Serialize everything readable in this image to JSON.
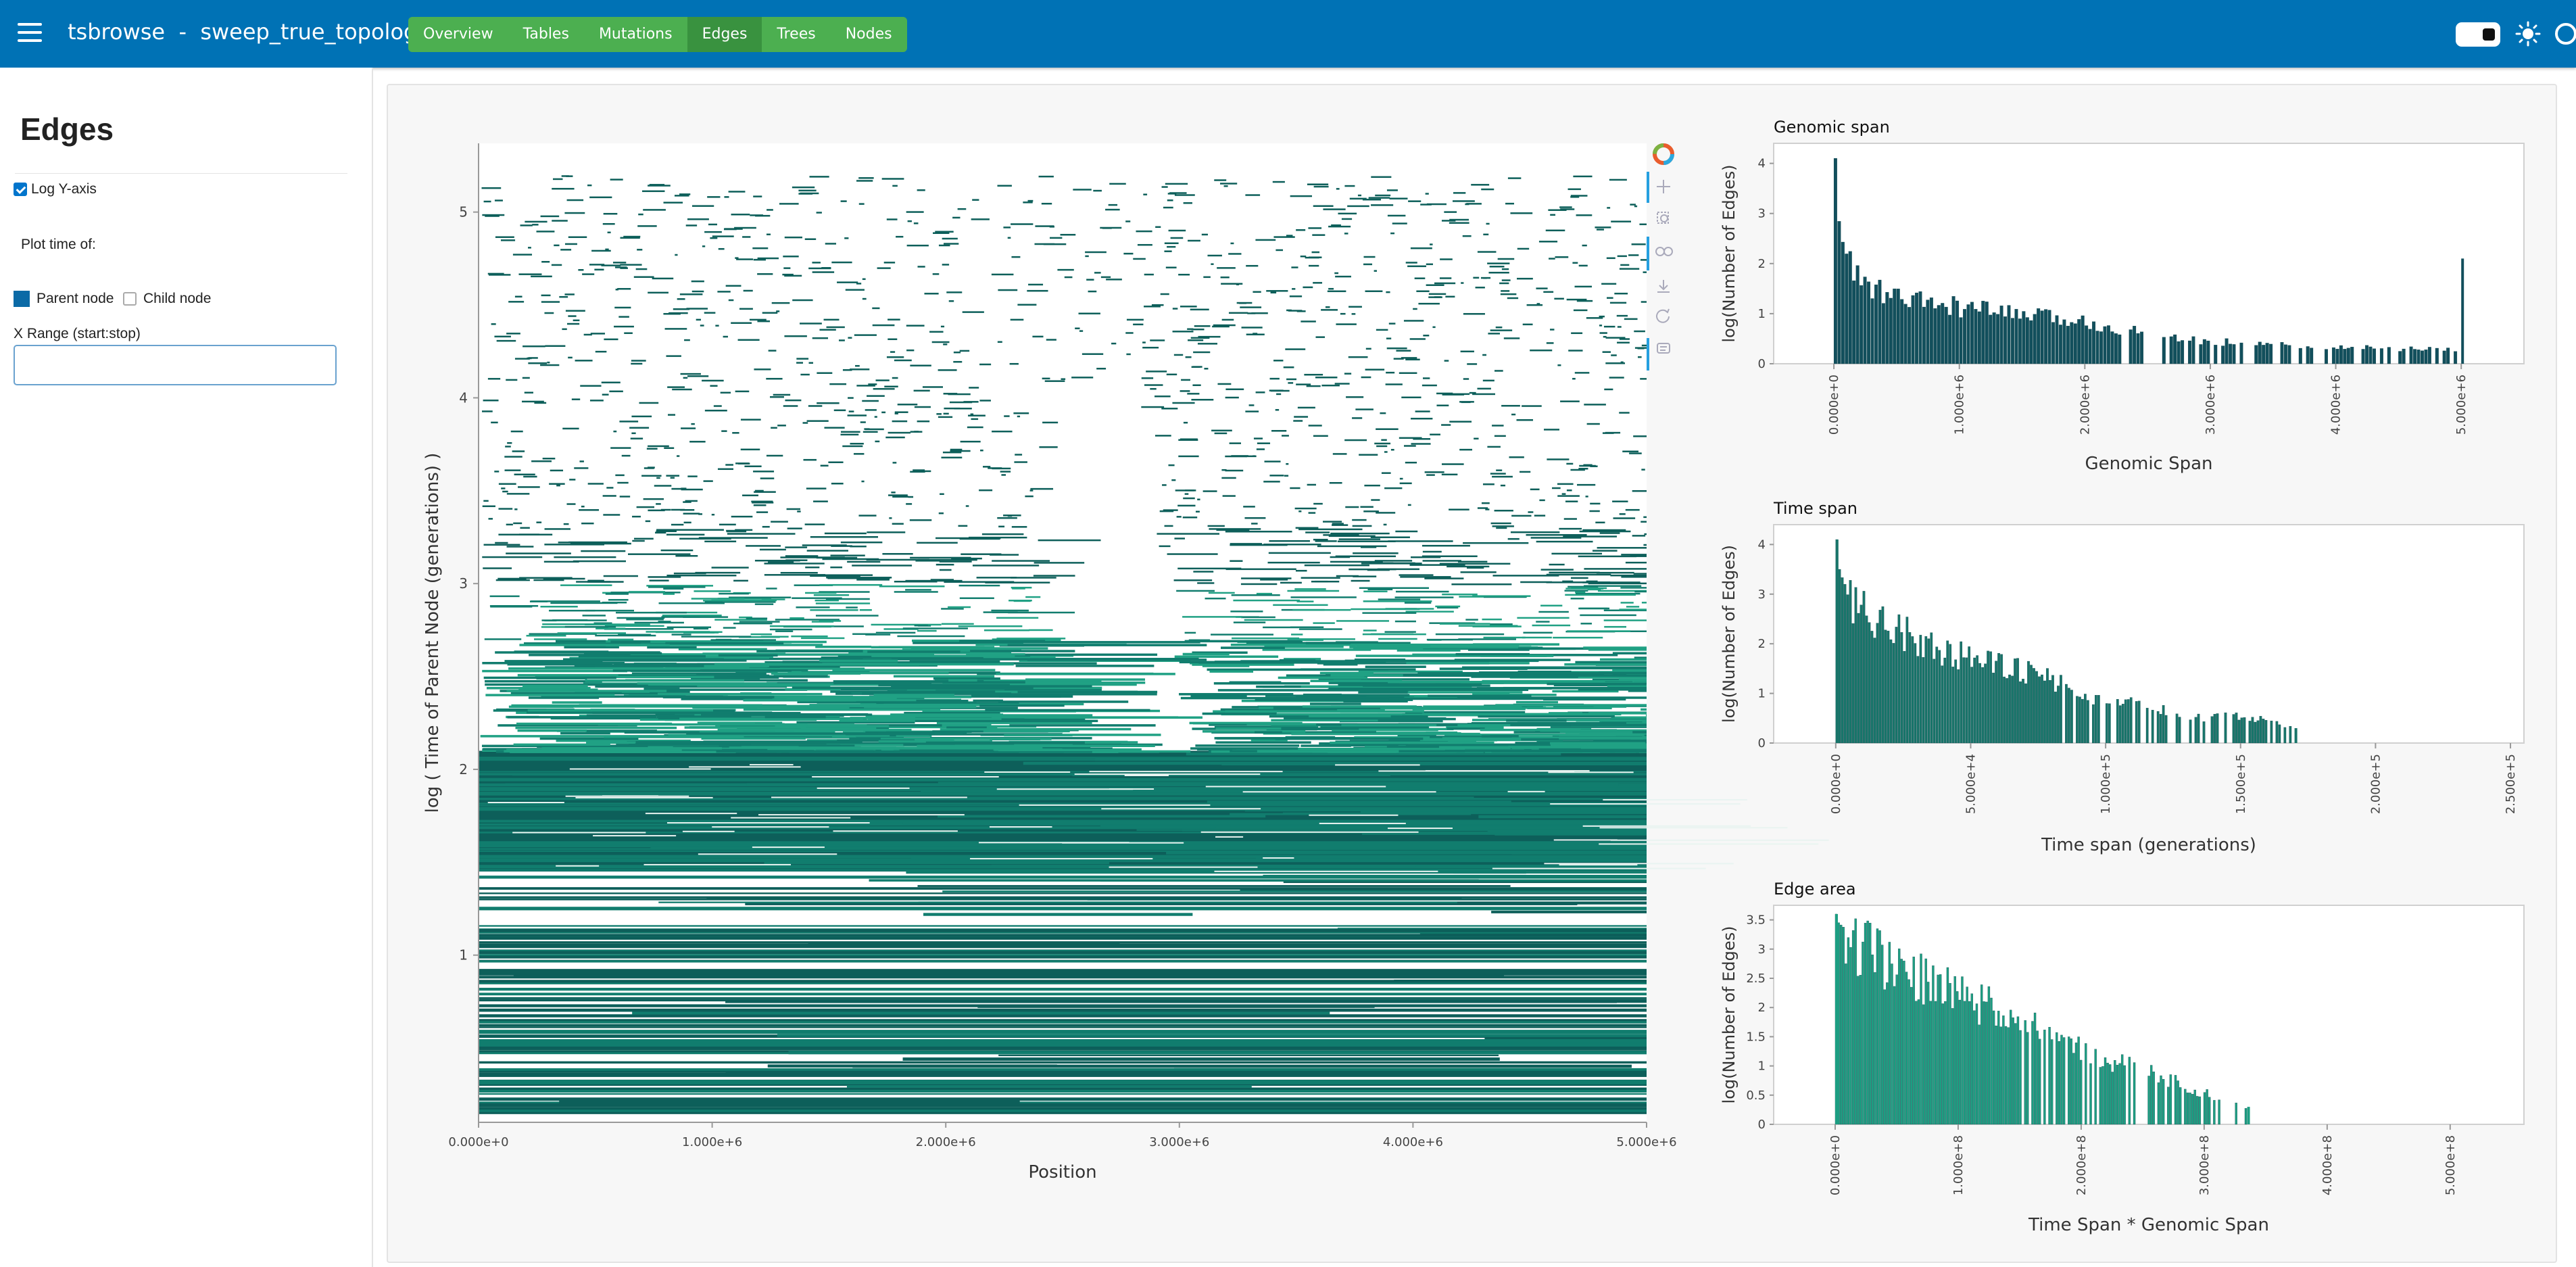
{
  "header": {
    "title": "tsbrowse  -  sweep_true_topology",
    "tabs": [
      {
        "label": "Overview",
        "active": false
      },
      {
        "label": "Tables",
        "active": false
      },
      {
        "label": "Mutations",
        "active": false
      },
      {
        "label": "Edges",
        "active": true
      },
      {
        "label": "Trees",
        "active": false
      },
      {
        "label": "Nodes",
        "active": false
      }
    ],
    "icons": [
      "hamburger-menu-icon",
      "theme-toggle",
      "sun-icon",
      "circle-icon"
    ]
  },
  "sidebar": {
    "title": "Edges",
    "log_y": {
      "label": "Log Y-axis",
      "checked": true
    },
    "plot_time_label": "Plot time of:",
    "parent_node": {
      "label": "Parent node",
      "selected": true
    },
    "child_node": {
      "label": "Child node",
      "selected": false
    },
    "x_range": {
      "label": "X Range (start:stop)",
      "value": "",
      "placeholder": ""
    }
  },
  "toolbar": {
    "icons": [
      "bokeh-logo-icon",
      "pan-icon",
      "box-zoom-icon",
      "wheel-zoom-icon",
      "save-icon",
      "reset-icon",
      "hover-icon"
    ]
  },
  "colors": {
    "header": "#0072b5",
    "nav": "#4caf50",
    "edge_dark": "#0d5f5a",
    "edge_mid": "#117d6e",
    "edge_light": "#20a184",
    "genomic_bar": "#124f5c",
    "time_bar": "#18756a",
    "area_bar": "#1d9e82"
  },
  "chart_data": [
    {
      "type": "scatter",
      "title": "",
      "xlabel": "Position",
      "ylabel": "log ( Time of Parent Node (generations) )",
      "xlim": [
        0,
        5000000
      ],
      "ylim": [
        0.1,
        5.37
      ],
      "x_ticks": [
        "0.000e+0",
        "1.000e+6",
        "2.000e+6",
        "3.000e+6",
        "4.000e+6",
        "5.000e+6"
      ],
      "y_ticks": [
        "1",
        "2",
        "3",
        "4",
        "5"
      ],
      "grid": false,
      "description_of_marks": "horizontal edge segments (left..right) at log parent time",
      "sweep_gap_x": [
        2450000,
        2800000
      ],
      "sweep_gap_y": [
        2.1,
        4.1
      ]
    },
    {
      "type": "bar",
      "title": "Genomic span",
      "xlabel": "Genomic Span",
      "ylabel": "log(Number of Edges)",
      "xlim": [
        -480000,
        5500000
      ],
      "ylim": [
        0,
        4.4
      ],
      "x_ticks": [
        "0.000e+0",
        "1.000e+6",
        "2.000e+6",
        "3.000e+6",
        "4.000e+6",
        "5.000e+6"
      ],
      "y_ticks": [
        "0",
        "1",
        "2",
        "3",
        "4"
      ],
      "x": [
        0,
        20000,
        50000,
        100000,
        200000,
        400000,
        700000,
        1000000,
        1500000,
        2000000,
        2500000,
        3000000,
        3500000,
        4000000,
        4500000,
        4950000,
        5000000
      ],
      "values": [
        4.1,
        3.0,
        2.5,
        2.1,
        1.7,
        1.4,
        1.25,
        1.15,
        1.0,
        0.85,
        0.6,
        0.45,
        0.4,
        0.35,
        0.3,
        0.3,
        2.1
      ]
    },
    {
      "type": "bar",
      "title": "Time span",
      "xlabel": "Time span (generations)",
      "ylabel": "log(Number of Edges)",
      "xlim": [
        -23000,
        255000
      ],
      "ylim": [
        0,
        4.4
      ],
      "x_ticks": [
        "0.000e+0",
        "5.000e+4",
        "1.000e+5",
        "1.500e+5",
        "2.000e+5",
        "2.500e+5"
      ],
      "y_ticks": [
        "0",
        "1",
        "2",
        "3",
        "4"
      ],
      "x": [
        0,
        1000,
        2500,
        5000,
        10000,
        20000,
        30000,
        40000,
        50000,
        60000,
        70000,
        80000,
        90000,
        100000,
        110000,
        120000,
        130000,
        150000,
        160000,
        170000
      ],
      "values": [
        4.1,
        3.5,
        3.25,
        3.0,
        2.75,
        2.4,
        2.15,
        1.9,
        1.75,
        1.6,
        1.45,
        1.3,
        1.05,
        0.85,
        0.8,
        0.7,
        0.5,
        0.55,
        0.45,
        0.3
      ]
    },
    {
      "type": "bar",
      "title": "Edge area",
      "xlabel": "Time Span * Genomic Span",
      "ylabel": "log(Number of Edges)",
      "xlim": [
        -50000000,
        560000000
      ],
      "ylim": [
        0,
        3.75
      ],
      "x_ticks": [
        "0.000e+0",
        "1.000e+8",
        "2.000e+8",
        "3.000e+8",
        "4.000e+8",
        "5.000e+8"
      ],
      "y_ticks": [
        "0",
        "0.5",
        "1",
        "1.5",
        "2",
        "2.5",
        "3",
        "3.5"
      ],
      "x": [
        0,
        2000000,
        10000000,
        25000000,
        50000000,
        75000000,
        100000000,
        125000000,
        150000000,
        175000000,
        200000000,
        225000000,
        250000000,
        275000000,
        300000000,
        320000000,
        335000000
      ],
      "values": [
        3.6,
        3.45,
        3.3,
        3.05,
        2.75,
        2.5,
        2.25,
        2.05,
        1.8,
        1.55,
        1.35,
        1.1,
        0.95,
        0.75,
        0.55,
        0.35,
        0.3
      ]
    }
  ]
}
